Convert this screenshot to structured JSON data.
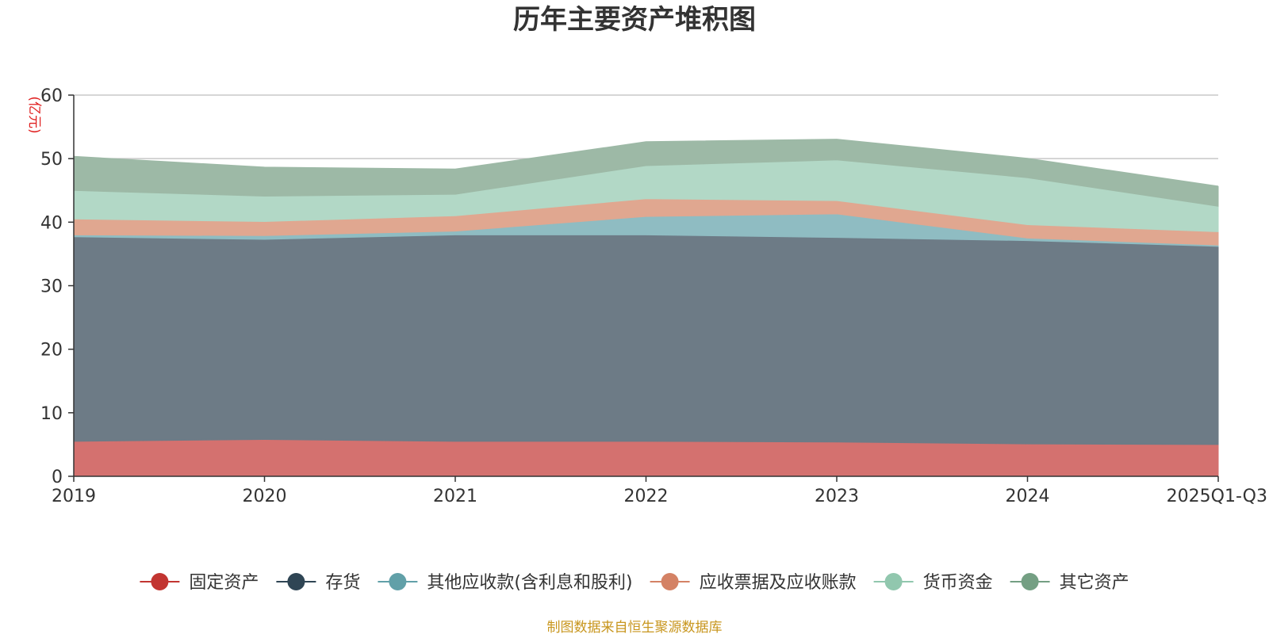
{
  "chart_data": {
    "type": "area",
    "stacked": true,
    "title": "历年主要资产堆积图",
    "unit_label": "(亿元)",
    "categories": [
      "2019",
      "2020",
      "2021",
      "2022",
      "2023",
      "2024",
      "2025Q1-Q3"
    ],
    "ylim": [
      0,
      60
    ],
    "yticks": [
      "0",
      "10",
      "20",
      "30",
      "40",
      "50",
      "60"
    ],
    "grid": true,
    "legend_position": "bottom",
    "series": [
      {
        "name": "固定资产",
        "values": [
          5.5,
          5.8,
          5.5,
          5.5,
          5.4,
          5.1,
          5.0
        ],
        "color": "#c23531",
        "fill": "#d4716f"
      },
      {
        "name": "存货",
        "values": [
          32.2,
          31.5,
          32.5,
          32.5,
          32.2,
          32.0,
          31.2
        ],
        "color": "#2f4554",
        "fill": "#6d7b86"
      },
      {
        "name": "其他应收款(含利息和股利)",
        "values": [
          0.3,
          0.6,
          0.6,
          2.9,
          3.7,
          0.4,
          0.2
        ],
        "color": "#61a0a8",
        "fill": "#8fbcc2"
      },
      {
        "name": "应收票据及应收账款",
        "values": [
          2.5,
          2.2,
          2.4,
          2.8,
          2.1,
          2.1,
          2.1
        ],
        "color": "#d48265",
        "fill": "#e0a790"
      },
      {
        "name": "货币资金",
        "values": [
          4.5,
          4.0,
          3.4,
          5.2,
          6.4,
          7.4,
          4.0
        ],
        "color": "#91c7ae",
        "fill": "#b2d8c6"
      },
      {
        "name": "其它资产",
        "values": [
          5.3,
          4.5,
          3.9,
          3.7,
          3.2,
          3.0,
          3.1
        ],
        "color": "#749f83",
        "fill": "#9db9a6"
      }
    ],
    "source": "制图数据来自恒生聚源数据库"
  }
}
